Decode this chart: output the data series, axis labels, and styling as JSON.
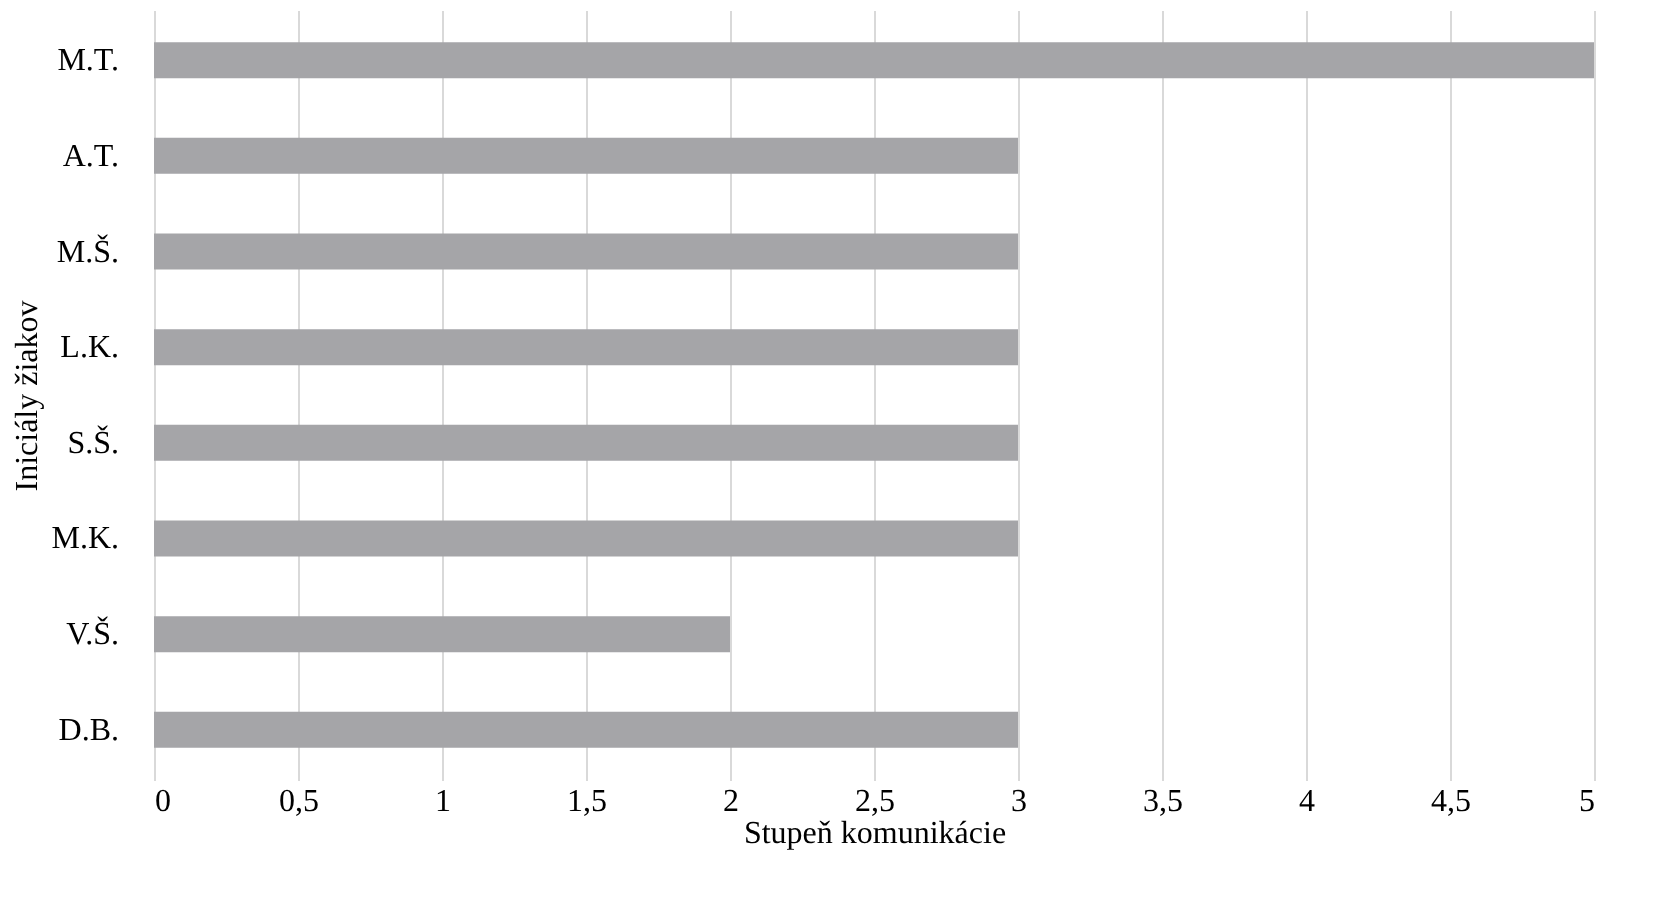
{
  "chart_data": {
    "type": "bar",
    "orientation": "horizontal",
    "xlabel": "Stupeň komunikácie",
    "ylabel": "Iniciály žiakov",
    "categories": [
      "M.T.",
      "A.T.",
      "M.Š.",
      "L.K.",
      "S.Š.",
      "M.K.",
      "V.Š.",
      "D.B."
    ],
    "values": [
      5,
      3,
      3,
      3,
      3,
      3,
      2,
      3
    ],
    "color": "#a5a5a8",
    "xlim": [
      0,
      5
    ],
    "xticks": [
      0,
      {
        "value": 0.5,
        "label": "0,5"
      },
      1,
      {
        "value": 1.5,
        "label": "1,5"
      },
      2,
      {
        "value": 2.5,
        "label": "2,5"
      },
      3,
      {
        "value": 3.5,
        "label": "3,5"
      },
      4,
      {
        "value": 4.5,
        "label": "4,5"
      },
      5
    ],
    "grid": "x"
  }
}
